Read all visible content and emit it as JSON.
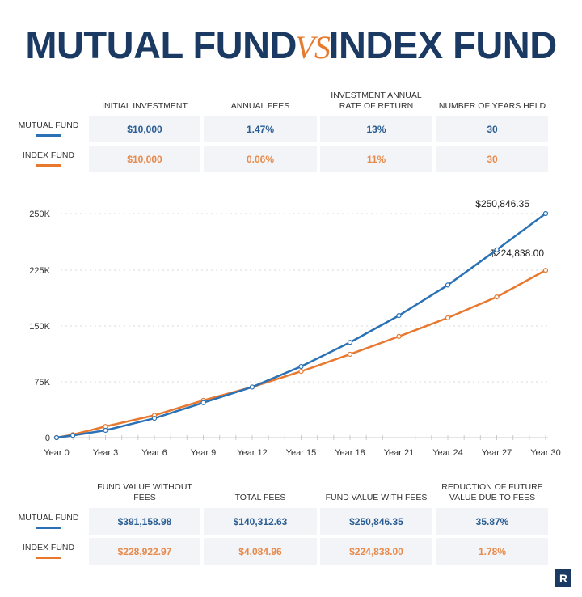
{
  "title": {
    "left": "MUTUAL FUND",
    "vs": "VS",
    "right": "INDEX FUND"
  },
  "colors": {
    "mutual": "#2a72b5",
    "index": "#e8782e",
    "navy": "#1b3a63"
  },
  "top_table": {
    "headers": [
      "INITIAL INVESTMENT",
      "ANNUAL FEES",
      "INVESTMENT ANNUAL RATE OF RETURN",
      "NUMBER OF YEARS HELD"
    ],
    "rows": [
      {
        "label": "MUTUAL FUND",
        "values": [
          "$10,000",
          "1.47%",
          "13%",
          "30"
        ]
      },
      {
        "label": "INDEX FUND",
        "values": [
          "$10,000",
          "0.06%",
          "11%",
          "30"
        ]
      }
    ]
  },
  "bottom_table": {
    "headers": [
      "FUND VALUE WITHOUT FEES",
      "TOTAL FEES",
      "FUND VALUE WITH FEES",
      "REDUCTION OF FUTURE VALUE DUE TO FEES"
    ],
    "rows": [
      {
        "label": "MUTUAL FUND",
        "values": [
          "$391,158.98",
          "$140,312.63",
          "$250,846.35",
          "35.87%"
        ]
      },
      {
        "label": "INDEX FUND",
        "values": [
          "$228,922.97",
          "$4,084.96",
          "$224,838.00",
          "1.78%"
        ]
      }
    ]
  },
  "logo": "R",
  "chart_data": {
    "type": "line",
    "x": [
      0,
      1,
      3,
      6,
      9,
      12,
      15,
      18,
      21,
      24,
      27,
      30
    ],
    "x_tick_labels": [
      "Year 0",
      "Year 3",
      "Year 6",
      "Year 9",
      "Year 12",
      "Year 15",
      "Year 18",
      "Year 21",
      "Year 24",
      "Year 27",
      "Year 30"
    ],
    "y_tick_labels": [
      "0",
      "75K",
      "150K",
      "225K",
      "250K"
    ],
    "y_ticks": [
      0,
      75000,
      150000,
      225000,
      250000
    ],
    "grid": "horizontal dotted",
    "series": [
      {
        "key": "mutual",
        "values": [
          0,
          3000,
          9800,
          26000,
          47000,
          68000,
          95600,
          128000,
          164000,
          205000,
          234000,
          250846.35
        ],
        "end_label": "$250,846.35"
      },
      {
        "key": "index",
        "values": [
          0,
          4000,
          15000,
          30000,
          50000,
          68000,
          89000,
          112000,
          136000,
          161000,
          189000,
          224838.0
        ],
        "end_label": "$224,838.00"
      }
    ]
  }
}
